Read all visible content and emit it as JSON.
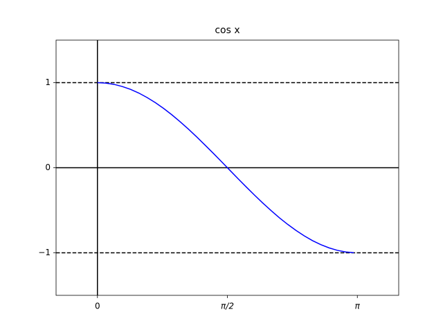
{
  "chart_data": {
    "type": "line",
    "title": "cos x",
    "x": [
      0,
      0.1,
      0.2,
      0.3,
      0.4,
      0.5,
      0.6,
      0.7,
      0.8,
      0.9,
      1.0,
      1.1,
      1.2,
      1.3,
      1.4,
      1.5,
      1.6,
      1.7,
      1.8,
      1.9,
      2.0,
      2.1,
      2.2,
      2.3,
      2.4,
      2.5,
      2.6,
      2.7,
      2.8,
      2.9,
      3.0,
      3.1
    ],
    "series": [
      {
        "color": "#0000ff",
        "values": [
          1,
          0.995,
          0.98,
          0.955,
          0.921,
          0.878,
          0.825,
          0.765,
          0.697,
          0.622,
          0.54,
          0.454,
          0.362,
          0.267,
          0.17,
          0.071,
          -0.029,
          -0.129,
          -0.227,
          -0.323,
          -0.416,
          -0.505,
          -0.589,
          -0.666,
          -0.737,
          -0.801,
          -0.857,
          -0.904,
          -0.942,
          -0.971,
          -0.99,
          -0.999
        ]
      }
    ],
    "xlim": [
      -0.5,
      3.6416
    ],
    "ylim": [
      -1.5,
      1.5
    ],
    "xticks": [
      0,
      {
        "value": 1.5708,
        "label": "π/2"
      },
      {
        "value": 3.1416,
        "label": "π"
      }
    ],
    "yticks": [
      {
        "value": -1,
        "label": "−1"
      },
      0,
      1
    ],
    "reference_lines": {
      "h": [
        {
          "value": 1,
          "dashed": true
        },
        {
          "value": 0,
          "dashed": false
        },
        {
          "value": -1,
          "dashed": true
        }
      ],
      "v": [
        {
          "value": 0,
          "dashed": false
        }
      ]
    },
    "grid": false
  }
}
